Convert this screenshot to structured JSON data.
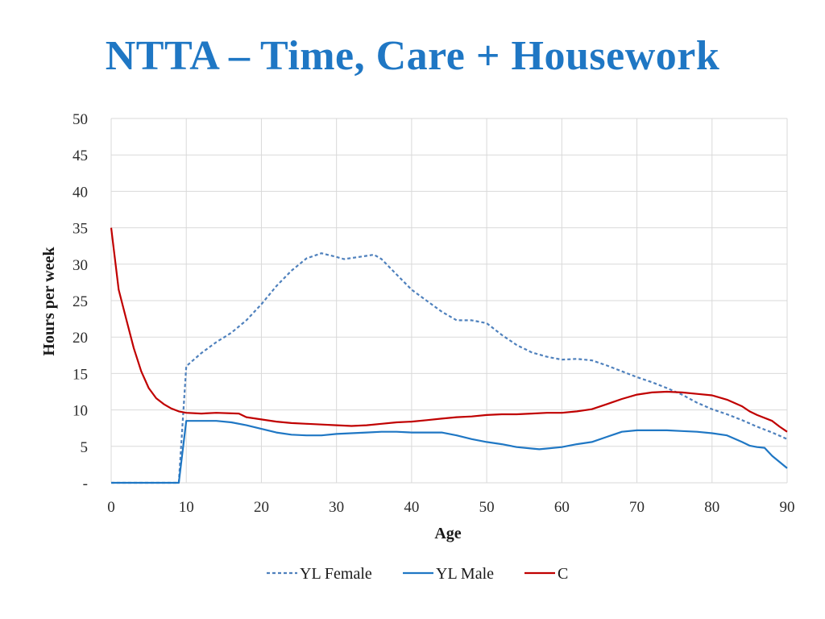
{
  "title": "NTTA – Time, Care + Housework",
  "colors": {
    "title": "#1f77c4",
    "yl_female": "#4f81bd",
    "yl_male": "#1f77c4",
    "c": "#c00000"
  },
  "chart_data": {
    "type": "line",
    "xlabel": "Age",
    "ylabel": "Hours per week",
    "xlim": [
      0,
      90
    ],
    "ylim": [
      0,
      50
    ],
    "x_ticks": [
      0,
      10,
      20,
      30,
      40,
      50,
      60,
      70,
      80,
      90
    ],
    "y_ticks": [
      0,
      5,
      10,
      15,
      20,
      25,
      30,
      35,
      40,
      45,
      50
    ],
    "y_tick_labels": [
      "-",
      "5",
      "10",
      "15",
      "20",
      "25",
      "30",
      "35",
      "40",
      "45",
      "50"
    ],
    "grid": true,
    "legend_position": "bottom",
    "series": [
      {
        "name": "YL Female",
        "style": "dashed",
        "points": [
          [
            0,
            0
          ],
          [
            9,
            0
          ],
          [
            10,
            16
          ],
          [
            12,
            17.8
          ],
          [
            14,
            19.3
          ],
          [
            16,
            20.6
          ],
          [
            18,
            22.3
          ],
          [
            20,
            24.5
          ],
          [
            22,
            27
          ],
          [
            24,
            29.1
          ],
          [
            26,
            30.8
          ],
          [
            28,
            31.5
          ],
          [
            30,
            31
          ],
          [
            31,
            30.7
          ],
          [
            33,
            31
          ],
          [
            35,
            31.3
          ],
          [
            36,
            30.7
          ],
          [
            38,
            28.6
          ],
          [
            40,
            26.5
          ],
          [
            42,
            25
          ],
          [
            44,
            23.5
          ],
          [
            46,
            22.3
          ],
          [
            48,
            22.3
          ],
          [
            50,
            21.9
          ],
          [
            52,
            20.3
          ],
          [
            54,
            18.9
          ],
          [
            56,
            17.9
          ],
          [
            58,
            17.3
          ],
          [
            60,
            16.9
          ],
          [
            62,
            17
          ],
          [
            64,
            16.8
          ],
          [
            66,
            16.1
          ],
          [
            68,
            15.3
          ],
          [
            70,
            14.5
          ],
          [
            72,
            13.8
          ],
          [
            74,
            13
          ],
          [
            76,
            12.1
          ],
          [
            78,
            11
          ],
          [
            80,
            10.1
          ],
          [
            82,
            9.4
          ],
          [
            84,
            8.6
          ],
          [
            86,
            7.7
          ],
          [
            88,
            6.9
          ],
          [
            90,
            6
          ]
        ]
      },
      {
        "name": "YL Male",
        "style": "solid",
        "points": [
          [
            0,
            0
          ],
          [
            9,
            0
          ],
          [
            10,
            8.5
          ],
          [
            12,
            8.5
          ],
          [
            14,
            8.5
          ],
          [
            16,
            8.3
          ],
          [
            18,
            7.9
          ],
          [
            20,
            7.4
          ],
          [
            22,
            6.9
          ],
          [
            24,
            6.6
          ],
          [
            26,
            6.5
          ],
          [
            28,
            6.5
          ],
          [
            30,
            6.7
          ],
          [
            32,
            6.8
          ],
          [
            34,
            6.9
          ],
          [
            36,
            7
          ],
          [
            38,
            7
          ],
          [
            40,
            6.9
          ],
          [
            42,
            6.9
          ],
          [
            44,
            6.9
          ],
          [
            46,
            6.5
          ],
          [
            48,
            6
          ],
          [
            50,
            5.6
          ],
          [
            52,
            5.3
          ],
          [
            54,
            4.9
          ],
          [
            56,
            4.7
          ],
          [
            57,
            4.6
          ],
          [
            58,
            4.7
          ],
          [
            60,
            4.9
          ],
          [
            62,
            5.3
          ],
          [
            64,
            5.6
          ],
          [
            66,
            6.3
          ],
          [
            68,
            7
          ],
          [
            70,
            7.2
          ],
          [
            72,
            7.2
          ],
          [
            74,
            7.2
          ],
          [
            76,
            7.1
          ],
          [
            78,
            7
          ],
          [
            80,
            6.8
          ],
          [
            82,
            6.5
          ],
          [
            84,
            5.6
          ],
          [
            85,
            5.1
          ],
          [
            86,
            4.9
          ],
          [
            87,
            4.8
          ],
          [
            88,
            3.7
          ],
          [
            90,
            2
          ]
        ]
      },
      {
        "name": "C",
        "style": "solid",
        "points": [
          [
            0,
            35
          ],
          [
            1,
            26.5
          ],
          [
            2,
            22.5
          ],
          [
            3,
            18.5
          ],
          [
            4,
            15.3
          ],
          [
            5,
            13
          ],
          [
            6,
            11.6
          ],
          [
            7,
            10.8
          ],
          [
            8,
            10.2
          ],
          [
            9,
            9.8
          ],
          [
            10,
            9.6
          ],
          [
            12,
            9.5
          ],
          [
            14,
            9.6
          ],
          [
            17,
            9.5
          ],
          [
            18,
            9
          ],
          [
            20,
            8.7
          ],
          [
            22,
            8.4
          ],
          [
            24,
            8.2
          ],
          [
            26,
            8.1
          ],
          [
            28,
            8
          ],
          [
            30,
            7.9
          ],
          [
            32,
            7.8
          ],
          [
            34,
            7.9
          ],
          [
            36,
            8.1
          ],
          [
            38,
            8.3
          ],
          [
            40,
            8.4
          ],
          [
            42,
            8.6
          ],
          [
            44,
            8.8
          ],
          [
            46,
            9
          ],
          [
            48,
            9.1
          ],
          [
            50,
            9.3
          ],
          [
            52,
            9.4
          ],
          [
            54,
            9.4
          ],
          [
            56,
            9.5
          ],
          [
            58,
            9.6
          ],
          [
            60,
            9.6
          ],
          [
            62,
            9.8
          ],
          [
            64,
            10.1
          ],
          [
            66,
            10.8
          ],
          [
            68,
            11.5
          ],
          [
            70,
            12.1
          ],
          [
            72,
            12.4
          ],
          [
            74,
            12.5
          ],
          [
            76,
            12.4
          ],
          [
            78,
            12.2
          ],
          [
            80,
            12
          ],
          [
            82,
            11.4
          ],
          [
            84,
            10.5
          ],
          [
            85,
            9.8
          ],
          [
            86,
            9.3
          ],
          [
            88,
            8.5
          ],
          [
            89,
            7.7
          ],
          [
            90,
            7
          ]
        ]
      }
    ]
  }
}
